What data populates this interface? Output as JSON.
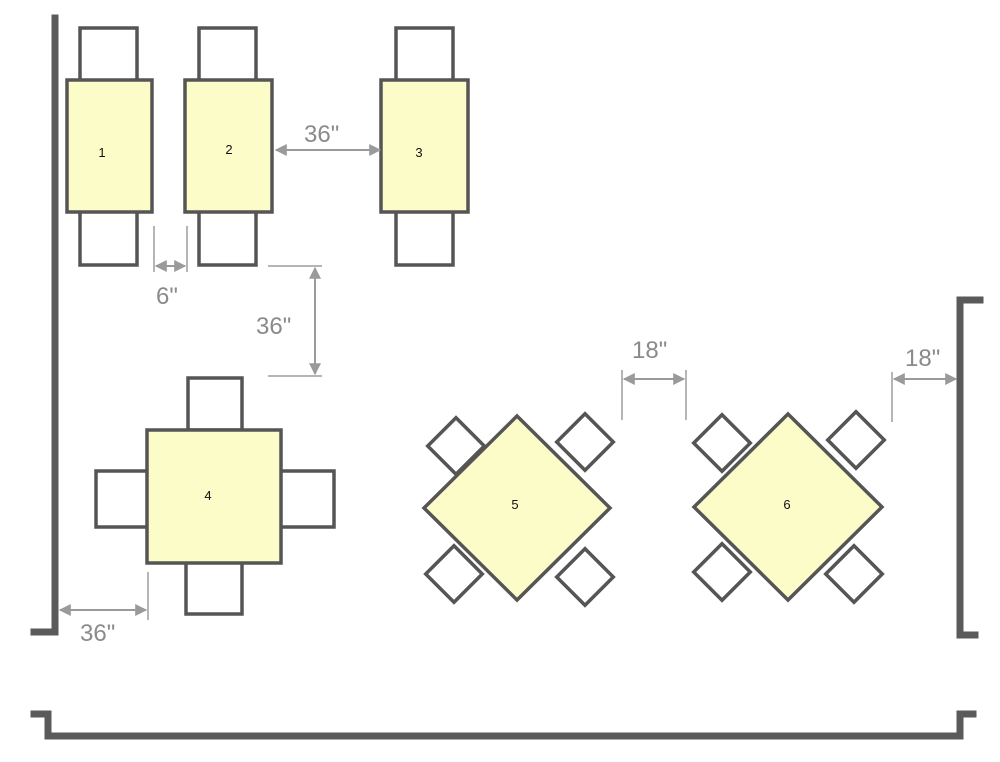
{
  "colors": {
    "table_fill": "#fcfcc8",
    "outline": "#555555",
    "wall": "#5a5a5a",
    "dimension": "#9a9a9a"
  },
  "tables": [
    {
      "number": "1"
    },
    {
      "number": "2"
    },
    {
      "number": "3"
    },
    {
      "number": "4"
    },
    {
      "number": "5"
    },
    {
      "number": "6"
    }
  ],
  "dimensions": [
    {
      "label": "36\""
    },
    {
      "label": "6\""
    },
    {
      "label": "36\""
    },
    {
      "label": "18\""
    },
    {
      "label": "18\""
    },
    {
      "label": "36\""
    }
  ]
}
